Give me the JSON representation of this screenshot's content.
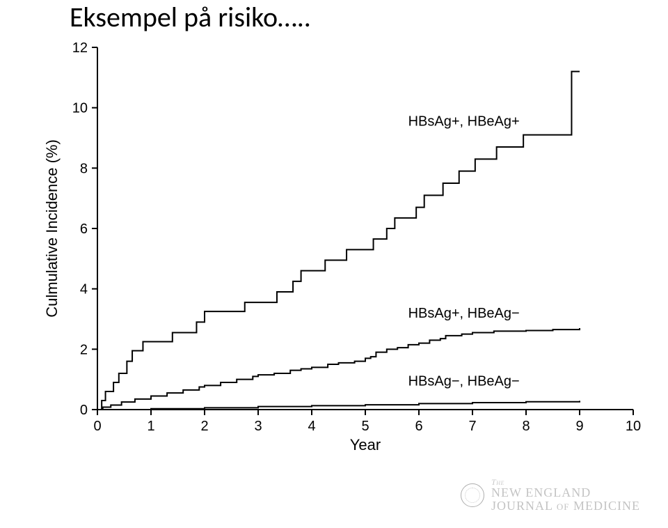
{
  "title": "Eksempel på risiko…..",
  "chart": {
    "type": "step-line",
    "background_color": "#ffffff",
    "axis_color": "#000000",
    "line_color": "#000000",
    "line_width": 2,
    "x_axis": {
      "label": "Year",
      "min": 0,
      "max": 10,
      "tick_step": 1,
      "ticks": [
        0,
        1,
        2,
        3,
        4,
        5,
        6,
        7,
        8,
        9,
        10
      ],
      "label_fontsize": 22,
      "tick_fontsize": 20
    },
    "y_axis": {
      "label": "Culmulative Incidence (%)",
      "min": 0,
      "max": 12,
      "tick_step": 2,
      "ticks": [
        0,
        2,
        4,
        6,
        8,
        10,
        12
      ],
      "label_fontsize": 22,
      "tick_fontsize": 20
    },
    "series": [
      {
        "name": "HBsAg+, HBeAg+",
        "label": "HBsAg+, HBeAg+",
        "label_pos_year": 5.8,
        "label_pos_pct": 9.4,
        "data": [
          [
            0.0,
            0.0
          ],
          [
            0.08,
            0.3
          ],
          [
            0.15,
            0.6
          ],
          [
            0.22,
            0.6
          ],
          [
            0.3,
            0.9
          ],
          [
            0.4,
            1.2
          ],
          [
            0.5,
            1.2
          ],
          [
            0.55,
            1.6
          ],
          [
            0.65,
            1.95
          ],
          [
            0.8,
            1.95
          ],
          [
            0.85,
            2.25
          ],
          [
            1.05,
            2.25
          ],
          [
            1.1,
            2.25
          ],
          [
            1.35,
            2.25
          ],
          [
            1.4,
            2.55
          ],
          [
            1.8,
            2.55
          ],
          [
            1.85,
            2.9
          ],
          [
            1.95,
            2.9
          ],
          [
            2.0,
            3.25
          ],
          [
            2.7,
            3.25
          ],
          [
            2.75,
            3.55
          ],
          [
            3.3,
            3.55
          ],
          [
            3.35,
            3.9
          ],
          [
            3.6,
            3.9
          ],
          [
            3.65,
            4.25
          ],
          [
            3.75,
            4.25
          ],
          [
            3.8,
            4.6
          ],
          [
            4.2,
            4.6
          ],
          [
            4.25,
            4.95
          ],
          [
            4.6,
            4.95
          ],
          [
            4.65,
            5.3
          ],
          [
            5.1,
            5.3
          ],
          [
            5.15,
            5.65
          ],
          [
            5.35,
            5.65
          ],
          [
            5.4,
            6.0
          ],
          [
            5.5,
            6.0
          ],
          [
            5.55,
            6.35
          ],
          [
            5.9,
            6.35
          ],
          [
            5.95,
            6.7
          ],
          [
            6.05,
            6.7
          ],
          [
            6.1,
            7.1
          ],
          [
            6.4,
            7.1
          ],
          [
            6.45,
            7.5
          ],
          [
            6.7,
            7.5
          ],
          [
            6.75,
            7.9
          ],
          [
            7.0,
            7.9
          ],
          [
            7.05,
            8.3
          ],
          [
            7.4,
            8.3
          ],
          [
            7.45,
            8.7
          ],
          [
            7.9,
            8.7
          ],
          [
            7.95,
            9.1
          ],
          [
            8.8,
            9.1
          ],
          [
            8.85,
            11.2
          ],
          [
            9.0,
            11.2
          ]
        ]
      },
      {
        "name": "HBsAg+, HBeAg-",
        "label": "HBsAg+, HBeAg−",
        "label_pos_year": 5.8,
        "label_pos_pct": 3.05,
        "data": [
          [
            0.0,
            0.0
          ],
          [
            0.1,
            0.08
          ],
          [
            0.25,
            0.15
          ],
          [
            0.45,
            0.25
          ],
          [
            0.7,
            0.35
          ],
          [
            1.0,
            0.45
          ],
          [
            1.3,
            0.55
          ],
          [
            1.6,
            0.65
          ],
          [
            1.9,
            0.75
          ],
          [
            2.0,
            0.8
          ],
          [
            2.3,
            0.9
          ],
          [
            2.6,
            1.0
          ],
          [
            2.9,
            1.1
          ],
          [
            3.0,
            1.15
          ],
          [
            3.3,
            1.2
          ],
          [
            3.6,
            1.3
          ],
          [
            3.8,
            1.35
          ],
          [
            4.0,
            1.4
          ],
          [
            4.3,
            1.5
          ],
          [
            4.5,
            1.55
          ],
          [
            4.8,
            1.6
          ],
          [
            5.0,
            1.7
          ],
          [
            5.1,
            1.75
          ],
          [
            5.2,
            1.9
          ],
          [
            5.4,
            2.0
          ],
          [
            5.6,
            2.05
          ],
          [
            5.8,
            2.15
          ],
          [
            6.0,
            2.2
          ],
          [
            6.2,
            2.3
          ],
          [
            6.4,
            2.35
          ],
          [
            6.5,
            2.45
          ],
          [
            6.8,
            2.5
          ],
          [
            7.0,
            2.55
          ],
          [
            7.4,
            2.6
          ],
          [
            8.0,
            2.62
          ],
          [
            8.5,
            2.65
          ],
          [
            9.0,
            2.7
          ]
        ]
      },
      {
        "name": "HBsAg-, HBeAg-",
        "label": "HBsAg−, HBeAg−",
        "label_pos_year": 5.8,
        "label_pos_pct": 0.8,
        "data": [
          [
            0.0,
            0.0
          ],
          [
            1.0,
            0.03
          ],
          [
            2.0,
            0.06
          ],
          [
            3.0,
            0.1
          ],
          [
            4.0,
            0.13
          ],
          [
            5.0,
            0.16
          ],
          [
            6.0,
            0.2
          ],
          [
            7.0,
            0.23
          ],
          [
            8.0,
            0.26
          ],
          [
            9.0,
            0.29
          ]
        ]
      }
    ]
  },
  "footer": {
    "line1": "The",
    "line2": "NEW ENGLAND",
    "line3": "JOURNAL of MEDICINE",
    "text_color": "#b5b5b5"
  }
}
